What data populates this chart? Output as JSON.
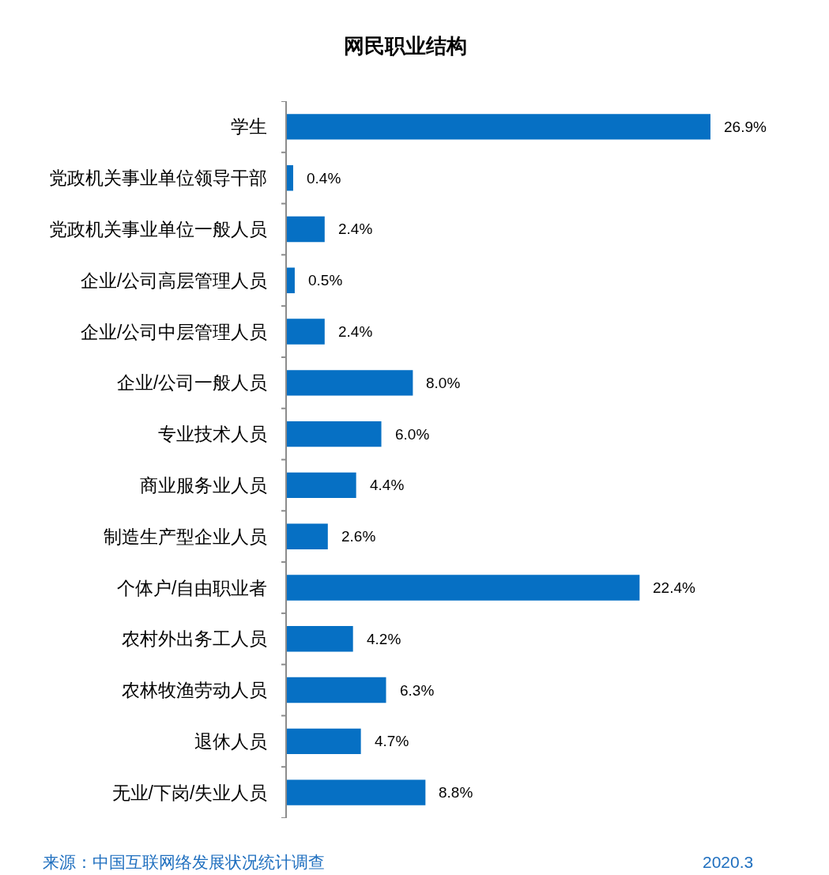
{
  "chart_data": {
    "type": "bar",
    "orientation": "horizontal",
    "title": "网民职业结构",
    "categories": [
      "学生",
      "党政机关事业单位领导干部",
      "党政机关事业单位一般人员",
      "企业/公司高层管理人员",
      "企业/公司中层管理人员",
      "企业/公司一般人员",
      "专业技术人员",
      "商业服务业人员",
      "制造生产型企业人员",
      "个体户/自由职业者",
      "农村外出务工人员",
      "农林牧渔劳动人员",
      "退休人员",
      "无业/下岗/失业人员"
    ],
    "values": [
      26.9,
      0.4,
      2.4,
      0.5,
      2.4,
      8.0,
      6.0,
      4.4,
      2.6,
      22.4,
      4.2,
      6.3,
      4.7,
      8.8
    ],
    "value_labels": [
      "26.9%",
      "0.4%",
      "2.4%",
      "0.5%",
      "2.4%",
      "8.0%",
      "6.0%",
      "4.4%",
      "2.6%",
      "22.4%",
      "4.2%",
      "6.3%",
      "4.7%",
      "8.8%"
    ],
    "color": "#0670c4",
    "tick_labels": "y",
    "annotations": [
      "来源：中国互联网络发展状况统计调查",
      "2020.3"
    ]
  }
}
